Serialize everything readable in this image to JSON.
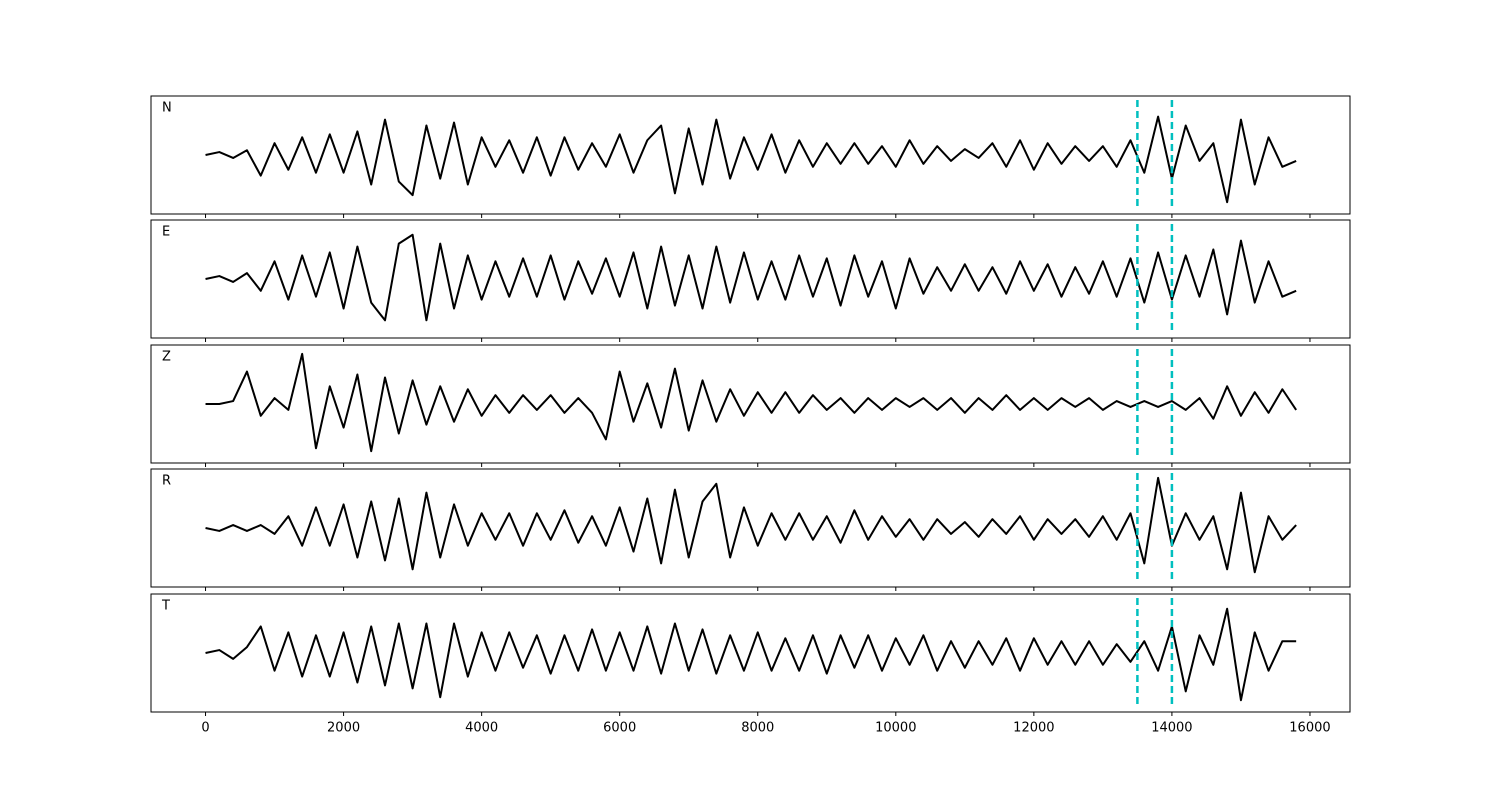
{
  "chart_data": {
    "type": "line",
    "xlim": [
      -790,
      16580
    ],
    "xticks": [
      0,
      2000,
      4000,
      6000,
      8000,
      10000,
      12000,
      14000,
      16000
    ],
    "ylim": [
      -1,
      1
    ],
    "color": "#000000",
    "vlines": [
      13500,
      14000
    ],
    "vline_color": "#00bfbf",
    "x": [
      0,
      200,
      400,
      600,
      800,
      1000,
      1200,
      1400,
      1600,
      1800,
      2000,
      2200,
      2400,
      2600,
      2800,
      3000,
      3200,
      3400,
      3600,
      3800,
      4000,
      4200,
      4400,
      4600,
      4800,
      5000,
      5200,
      5400,
      5600,
      5800,
      6000,
      6200,
      6400,
      6600,
      6800,
      7000,
      7200,
      7400,
      7600,
      7800,
      8000,
      8200,
      8400,
      8600,
      8800,
      9000,
      9200,
      9400,
      9600,
      9800,
      10000,
      10200,
      10400,
      10600,
      10800,
      11000,
      11200,
      11400,
      11600,
      11800,
      12000,
      12200,
      12400,
      12600,
      12800,
      13000,
      13200,
      13400,
      13600,
      13800,
      14000,
      14200,
      14400,
      14600,
      14800,
      15000,
      15200,
      15400,
      15600,
      15800
    ],
    "panels": [
      {
        "label": "N",
        "values": [
          0,
          0.05,
          -0.05,
          0.08,
          -0.35,
          0.2,
          -0.25,
          0.3,
          -0.3,
          0.35,
          -0.3,
          0.4,
          -0.5,
          0.6,
          -0.45,
          -0.68,
          0.5,
          -0.4,
          0.55,
          -0.5,
          0.3,
          -0.2,
          0.25,
          -0.3,
          0.3,
          -0.35,
          0.3,
          -0.25,
          0.2,
          -0.2,
          0.35,
          -0.3,
          0.25,
          0.5,
          -0.65,
          0.45,
          -0.5,
          0.6,
          -0.4,
          0.3,
          -0.25,
          0.35,
          -0.3,
          0.25,
          -0.2,
          0.2,
          -0.15,
          0.2,
          -0.15,
          0.15,
          -0.2,
          0.25,
          -0.15,
          0.15,
          -0.1,
          0.1,
          -0.05,
          0.2,
          -0.2,
          0.25,
          -0.25,
          0.2,
          -0.15,
          0.15,
          -0.1,
          0.15,
          -0.2,
          0.25,
          -0.3,
          0.65,
          -0.4,
          0.5,
          -0.1,
          0.2,
          -0.8,
          0.6,
          -0.5,
          0.3,
          -0.2,
          -0.1
        ]
      },
      {
        "label": "E",
        "values": [
          0,
          0.05,
          -0.05,
          0.1,
          -0.2,
          0.3,
          -0.35,
          0.4,
          -0.3,
          0.45,
          -0.5,
          0.55,
          -0.4,
          -0.7,
          0.6,
          0.75,
          -0.7,
          0.6,
          -0.5,
          0.4,
          -0.35,
          0.3,
          -0.3,
          0.35,
          -0.3,
          0.4,
          -0.35,
          0.3,
          -0.25,
          0.35,
          -0.3,
          0.45,
          -0.5,
          0.55,
          -0.45,
          0.4,
          -0.5,
          0.55,
          -0.4,
          0.45,
          -0.35,
          0.3,
          -0.35,
          0.4,
          -0.3,
          0.35,
          -0.45,
          0.4,
          -0.3,
          0.3,
          -0.5,
          0.35,
          -0.25,
          0.2,
          -0.2,
          0.25,
          -0.2,
          0.2,
          -0.25,
          0.3,
          -0.2,
          0.25,
          -0.3,
          0.2,
          -0.25,
          0.3,
          -0.3,
          0.35,
          -0.4,
          0.45,
          -0.35,
          0.4,
          -0.3,
          0.5,
          -0.6,
          0.65,
          -0.4,
          0.3,
          -0.3,
          -0.2
        ]
      },
      {
        "label": "Z",
        "values": [
          0,
          0,
          0.05,
          0.55,
          -0.2,
          0.1,
          -0.1,
          0.85,
          -0.75,
          0.3,
          -0.4,
          0.5,
          -0.8,
          0.45,
          -0.5,
          0.4,
          -0.35,
          0.3,
          -0.3,
          0.25,
          -0.2,
          0.15,
          -0.15,
          0.15,
          -0.1,
          0.15,
          -0.15,
          0.1,
          -0.15,
          -0.6,
          0.55,
          -0.3,
          0.35,
          -0.4,
          0.6,
          -0.45,
          0.4,
          -0.3,
          0.25,
          -0.2,
          0.2,
          -0.15,
          0.2,
          -0.15,
          0.15,
          -0.1,
          0.1,
          -0.15,
          0.1,
          -0.1,
          0.1,
          -0.05,
          0.1,
          -0.1,
          0.1,
          -0.15,
          0.1,
          -0.1,
          0.15,
          -0.1,
          0.1,
          -0.1,
          0.1,
          -0.05,
          0.1,
          -0.1,
          0.05,
          -0.05,
          0.05,
          -0.05,
          0.05,
          -0.1,
          0.1,
          -0.25,
          0.3,
          -0.2,
          0.2,
          -0.15,
          0.25,
          -0.1
        ]
      },
      {
        "label": "R",
        "values": [
          0,
          -0.05,
          0.05,
          -0.05,
          0.05,
          -0.1,
          0.2,
          -0.3,
          0.35,
          -0.3,
          0.4,
          -0.5,
          0.45,
          -0.55,
          0.5,
          -0.7,
          0.6,
          -0.5,
          0.4,
          -0.3,
          0.25,
          -0.2,
          0.25,
          -0.3,
          0.25,
          -0.2,
          0.3,
          -0.25,
          0.2,
          -0.3,
          0.35,
          -0.4,
          0.5,
          -0.6,
          0.65,
          -0.5,
          0.45,
          0.75,
          -0.5,
          0.35,
          -0.3,
          0.25,
          -0.2,
          0.25,
          -0.2,
          0.2,
          -0.25,
          0.3,
          -0.2,
          0.2,
          -0.15,
          0.15,
          -0.2,
          0.15,
          -0.1,
          0.1,
          -0.15,
          0.15,
          -0.1,
          0.2,
          -0.2,
          0.15,
          -0.1,
          0.15,
          -0.15,
          0.2,
          -0.2,
          0.25,
          -0.6,
          0.85,
          -0.3,
          0.25,
          -0.2,
          0.2,
          -0.7,
          0.6,
          -0.75,
          0.2,
          -0.2,
          0.05
        ]
      },
      {
        "label": "T",
        "values": [
          0,
          0.05,
          -0.1,
          0.1,
          0.45,
          -0.3,
          0.35,
          -0.4,
          0.3,
          -0.4,
          0.35,
          -0.5,
          0.45,
          -0.55,
          0.5,
          -0.6,
          0.5,
          -0.75,
          0.5,
          -0.4,
          0.35,
          -0.3,
          0.35,
          -0.25,
          0.3,
          -0.35,
          0.3,
          -0.3,
          0.4,
          -0.3,
          0.35,
          -0.3,
          0.45,
          -0.35,
          0.5,
          -0.3,
          0.4,
          -0.35,
          0.3,
          -0.3,
          0.35,
          -0.3,
          0.25,
          -0.3,
          0.3,
          -0.35,
          0.3,
          -0.25,
          0.3,
          -0.3,
          0.25,
          -0.2,
          0.3,
          -0.3,
          0.2,
          -0.25,
          0.2,
          -0.2,
          0.25,
          -0.3,
          0.25,
          -0.2,
          0.2,
          -0.2,
          0.2,
          -0.2,
          0.15,
          -0.15,
          0.2,
          -0.3,
          0.45,
          -0.65,
          0.3,
          -0.2,
          0.75,
          -0.8,
          0.35,
          -0.3,
          0.2,
          0.2
        ]
      }
    ]
  }
}
